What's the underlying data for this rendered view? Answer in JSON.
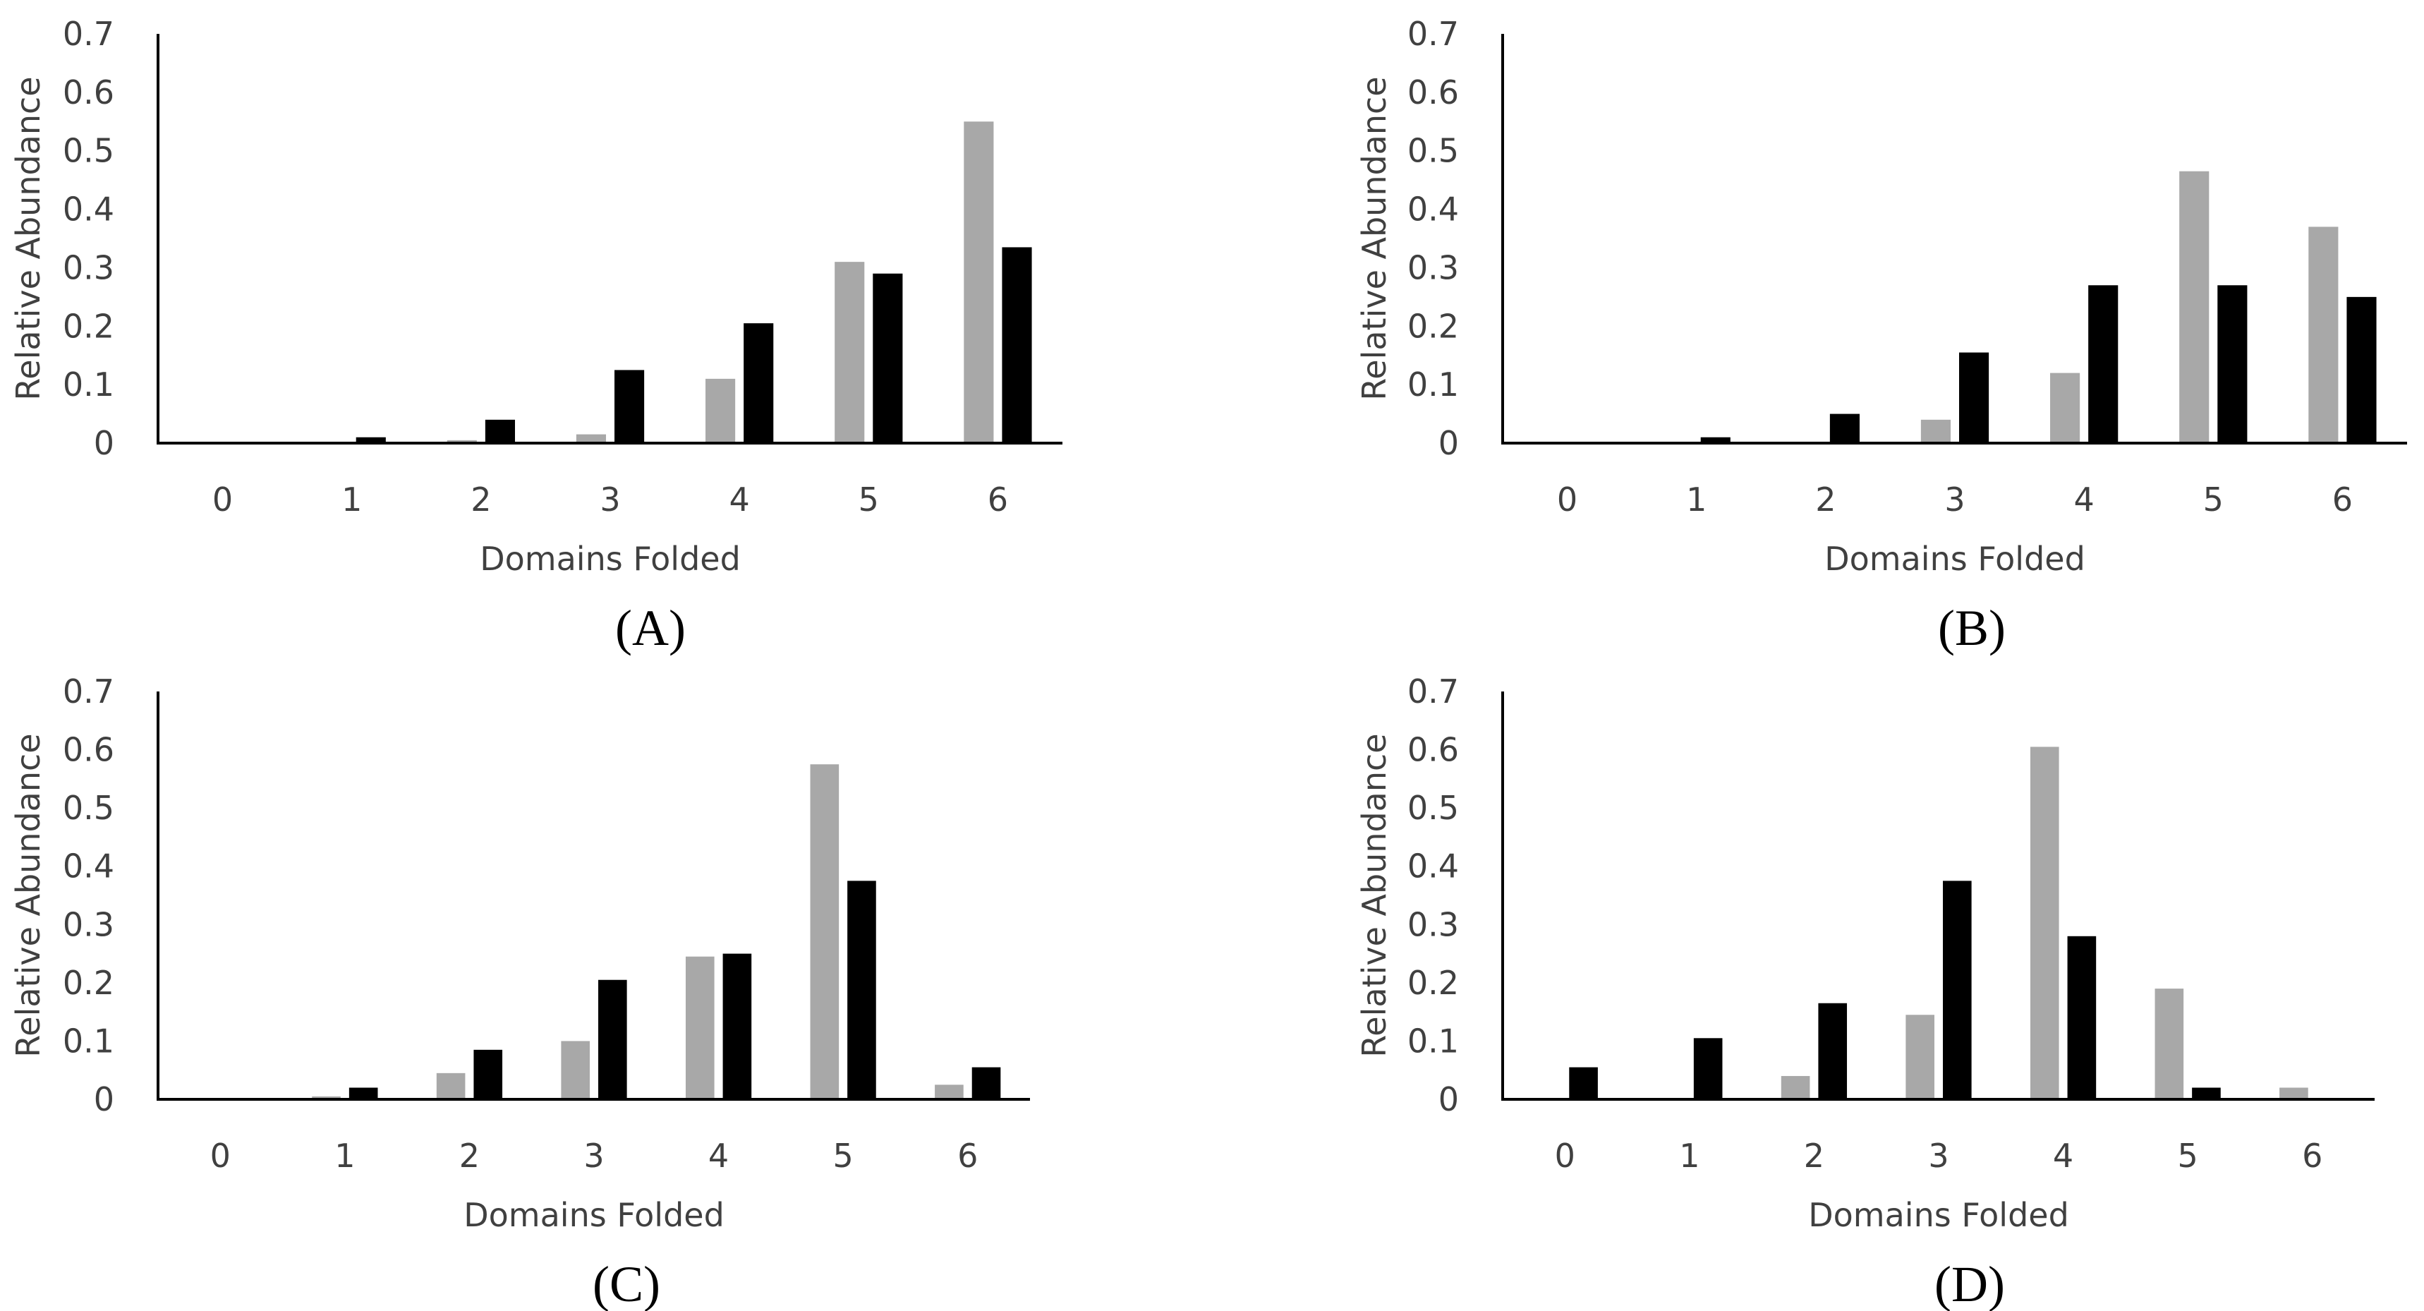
{
  "colors": {
    "series_gray": "#a8a8a8",
    "series_black": "#000000",
    "axis": "#000000"
  },
  "chart_data": [
    {
      "type": "bar",
      "caption": "(A)",
      "title": "",
      "xlabel": "Domains Folded",
      "ylabel": "Relative Abundance",
      "categories": [
        "0",
        "1",
        "2",
        "3",
        "4",
        "5",
        "6"
      ],
      "ylim": [
        0,
        0.7
      ],
      "yticks": [
        "0",
        "0.1",
        "0.2",
        "0.3",
        "0.4",
        "0.5",
        "0.6",
        "0.7"
      ],
      "series": [
        {
          "name": "gray",
          "values": [
            0,
            0,
            0.005,
            0.015,
            0.11,
            0.31,
            0.55
          ]
        },
        {
          "name": "black",
          "values": [
            0,
            0.01,
            0.04,
            0.125,
            0.205,
            0.29,
            0.335
          ]
        }
      ]
    },
    {
      "type": "bar",
      "caption": "(B)",
      "title": "",
      "xlabel": "Domains Folded",
      "ylabel": "Relative Abundance",
      "categories": [
        "0",
        "1",
        "2",
        "3",
        "4",
        "5",
        "6"
      ],
      "ylim": [
        0,
        0.7
      ],
      "yticks": [
        "0",
        "0.1",
        "0.2",
        "0.3",
        "0.4",
        "0.5",
        "0.6",
        "0.7"
      ],
      "series": [
        {
          "name": "gray",
          "values": [
            0,
            0,
            0,
            0.04,
            0.12,
            0.465,
            0.37
          ]
        },
        {
          "name": "black",
          "values": [
            0,
            0.01,
            0.05,
            0.155,
            0.27,
            0.27,
            0.25
          ]
        }
      ]
    },
    {
      "type": "bar",
      "caption": "(C)",
      "title": "",
      "xlabel": "Domains Folded",
      "ylabel": "Relative Abundance",
      "categories": [
        "0",
        "1",
        "2",
        "3",
        "4",
        "5",
        "6"
      ],
      "ylim": [
        0,
        0.7
      ],
      "yticks": [
        "0",
        "0.1",
        "0.2",
        "0.3",
        "0.4",
        "0.5",
        "0.6",
        "0.7"
      ],
      "series": [
        {
          "name": "gray",
          "values": [
            0,
            0.005,
            0.045,
            0.1,
            0.245,
            0.575,
            0.025
          ]
        },
        {
          "name": "black",
          "values": [
            0,
            0.02,
            0.085,
            0.205,
            0.25,
            0.375,
            0.055
          ]
        }
      ]
    },
    {
      "type": "bar",
      "caption": "(D)",
      "title": "",
      "xlabel": "Domains Folded",
      "ylabel": "Relative Abundance",
      "categories": [
        "0",
        "1",
        "2",
        "3",
        "4",
        "5",
        "6"
      ],
      "ylim": [
        0,
        0.7
      ],
      "yticks": [
        "0",
        "0.1",
        "0.2",
        "0.3",
        "0.4",
        "0.5",
        "0.6",
        "0.7"
      ],
      "series": [
        {
          "name": "gray",
          "values": [
            0,
            0,
            0.04,
            0.145,
            0.605,
            0.19,
            0.02
          ]
        },
        {
          "name": "black",
          "values": [
            0.055,
            0.105,
            0.165,
            0.375,
            0.28,
            0.02,
            0
          ]
        }
      ]
    }
  ]
}
